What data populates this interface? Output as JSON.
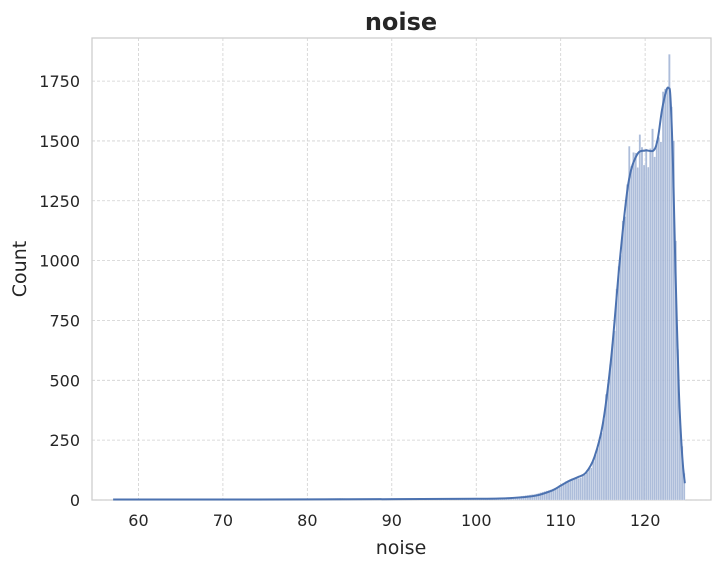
{
  "chart_data": {
    "type": "bar",
    "title": "noise",
    "xlabel": "noise",
    "ylabel": "Count",
    "xlim": [
      54.5,
      127.8
    ],
    "ylim": [
      0,
      1930
    ],
    "x_ticks": [
      60,
      70,
      80,
      90,
      100,
      110,
      120
    ],
    "y_ticks": [
      0,
      250,
      500,
      750,
      1000,
      1250,
      1500,
      1750
    ],
    "grid": true,
    "histogram": {
      "bin_start": 57.0,
      "bin_width": 0.25,
      "value_points": [
        [
          57.0,
          3
        ],
        [
          70,
          3
        ],
        [
          80,
          4
        ],
        [
          83,
          7
        ],
        [
          84,
          8
        ],
        [
          85,
          5
        ],
        [
          95,
          4
        ],
        [
          100,
          6
        ],
        [
          104,
          10
        ],
        [
          107,
          25
        ],
        [
          109,
          45
        ],
        [
          110,
          60
        ],
        [
          111,
          85
        ],
        [
          112,
          92
        ],
        [
          113,
          108
        ],
        [
          114,
          165
        ],
        [
          115,
          310
        ],
        [
          116,
          600
        ],
        [
          117,
          1000
        ],
        [
          118,
          1380
        ],
        [
          118.6,
          1450
        ],
        [
          119,
          1460
        ],
        [
          120,
          1440
        ],
        [
          121,
          1470
        ],
        [
          122,
          1560
        ],
        [
          122.5,
          1760
        ],
        [
          122.9,
          1840
        ],
        [
          123.3,
          1600
        ],
        [
          123.7,
          900
        ],
        [
          124.1,
          350
        ],
        [
          124.7,
          80
        ]
      ]
    },
    "kde": {
      "x": [
        57,
        70,
        85,
        100,
        104,
        107,
        109,
        110,
        111,
        112,
        113,
        114,
        115,
        116,
        117,
        118,
        119,
        120,
        121,
        121.5,
        122,
        122.5,
        122.8,
        123,
        123.3,
        123.6,
        124,
        124.4,
        124.7
      ],
      "y": [
        2,
        2,
        3,
        5,
        8,
        18,
        40,
        60,
        80,
        95,
        115,
        180,
        320,
        600,
        1000,
        1320,
        1440,
        1460,
        1460,
        1510,
        1630,
        1710,
        1720,
        1680,
        1400,
        950,
        450,
        180,
        70
      ]
    },
    "series": [
      {
        "name": "",
        "color": "#4c72b0"
      }
    ],
    "bar_color": "#9fb1d4",
    "line_color": "#4c72b0"
  }
}
